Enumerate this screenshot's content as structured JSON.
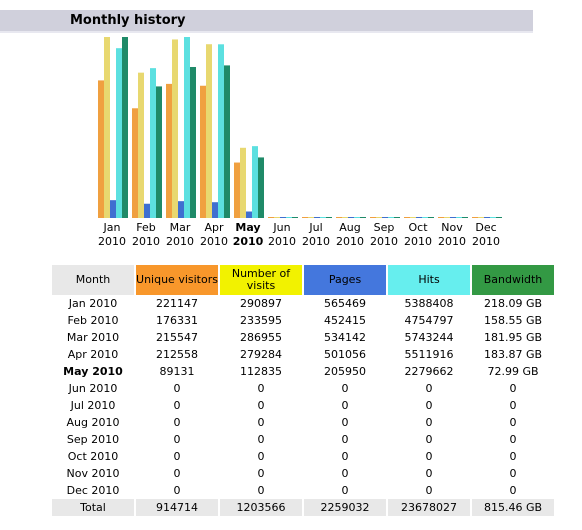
{
  "header": {
    "title": "Monthly history"
  },
  "chart_data": {
    "type": "bar",
    "categories": [
      "Jan 2010",
      "Feb 2010",
      "Mar 2010",
      "Apr 2010",
      "May 2010",
      "Jun 2010",
      "Jul 2010",
      "Aug 2010",
      "Sep 2010",
      "Oct 2010",
      "Nov 2010",
      "Dec 2010"
    ],
    "series": [
      {
        "name": "Unique visitors",
        "color": "#f0a040",
        "values": [
          221147,
          176331,
          215547,
          212558,
          89131,
          0,
          0,
          0,
          0,
          0,
          0,
          0
        ]
      },
      {
        "name": "Number of visits",
        "color": "#e8d870",
        "values": [
          290897,
          233595,
          286955,
          279284,
          112835,
          0,
          0,
          0,
          0,
          0,
          0,
          0
        ]
      },
      {
        "name": "Pages",
        "color": "#3f6fd0",
        "values": [
          565469,
          452415,
          534142,
          501056,
          205950,
          0,
          0,
          0,
          0,
          0,
          0,
          0
        ]
      },
      {
        "name": "Hits",
        "color": "#5ce0e0",
        "values": [
          5388408,
          4754797,
          5743244,
          5511916,
          2279662,
          0,
          0,
          0,
          0,
          0,
          0,
          0
        ]
      },
      {
        "name": "Bandwidth",
        "color": "#1f8a68",
        "values": [
          218.09,
          158.55,
          181.95,
          183.87,
          72.99,
          0,
          0,
          0,
          0,
          0,
          0,
          0
        ],
        "value_labels": [
          "218.09 GB",
          "158.55 GB",
          "181.95 GB",
          "183.87 GB",
          "72.99 GB",
          "0",
          "0",
          "0",
          "0",
          "0",
          "0",
          "0"
        ]
      }
    ]
  },
  "table": {
    "month_header": "Month",
    "header_colors": [
      "#f8972b",
      "#f2f200",
      "#4477dd",
      "#66eeee",
      "#339944"
    ],
    "total_row": {
      "label": "Total",
      "cells": [
        914714,
        1203566,
        2259032,
        23678027,
        "815.46 GB"
      ]
    }
  }
}
